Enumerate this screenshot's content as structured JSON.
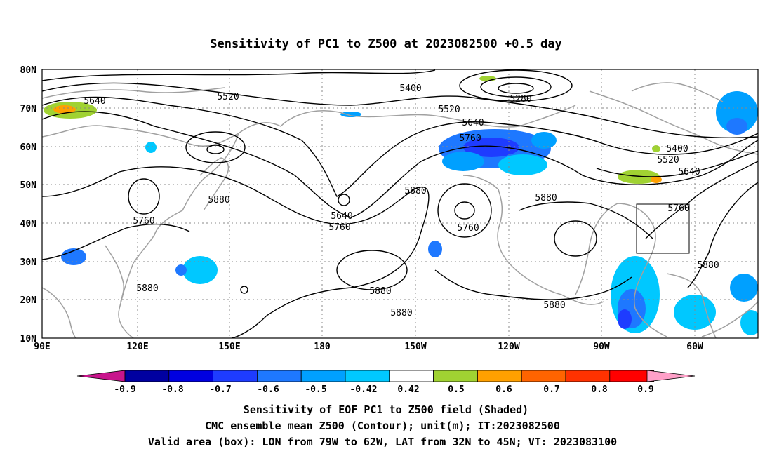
{
  "title": "Sensitivity of PC1 to Z500 at 2023082500 +0.5 day",
  "axes": {
    "lat_ticks": [
      "80N",
      "70N",
      "60N",
      "50N",
      "40N",
      "30N",
      "20N",
      "10N"
    ],
    "lon_ticks": [
      "90E",
      "120E",
      "150E",
      "180",
      "150W",
      "120W",
      "90W",
      "60W"
    ]
  },
  "contour_labels": [
    "5640",
    "5520",
    "5400",
    "5280",
    "5520",
    "5640",
    "5760",
    "5880",
    "5880",
    "5760",
    "5640",
    "5760",
    "5880",
    "5760",
    "5880",
    "5880",
    "5880",
    "5880",
    "5400",
    "5520",
    "5640",
    "5760",
    "5880",
    "5880"
  ],
  "colorbar": {
    "labels": [
      "-0.9",
      "-0.8",
      "-0.7",
      "-0.6",
      "-0.5",
      "-0.42",
      "0.42",
      "0.5",
      "0.6",
      "0.7",
      "0.8",
      "0.9"
    ],
    "colors": [
      "#0000a0",
      "#0000e0",
      "#1e3cff",
      "#1e78ff",
      "#00a0ff",
      "#00c8ff",
      "#ffffff",
      "#a0d232",
      "#ffa000",
      "#ff6400",
      "#ff3200",
      "#ff0000"
    ],
    "under_color": "#c8148c",
    "over_color": "#ffa0c8"
  },
  "captions": [
    "Sensitivity of EOF PC1 to Z500 field (Shaded)",
    "CMC ensemble mean Z500 (Contour); unit(m); IT:2023082500",
    "Valid area (box): LON from 79W to 62W, LAT from 32N to 45N; VT: 2023083100"
  ],
  "valid_area": {
    "lon_min": -79,
    "lon_max": -62,
    "lat_min": 32,
    "lat_max": 45
  }
}
